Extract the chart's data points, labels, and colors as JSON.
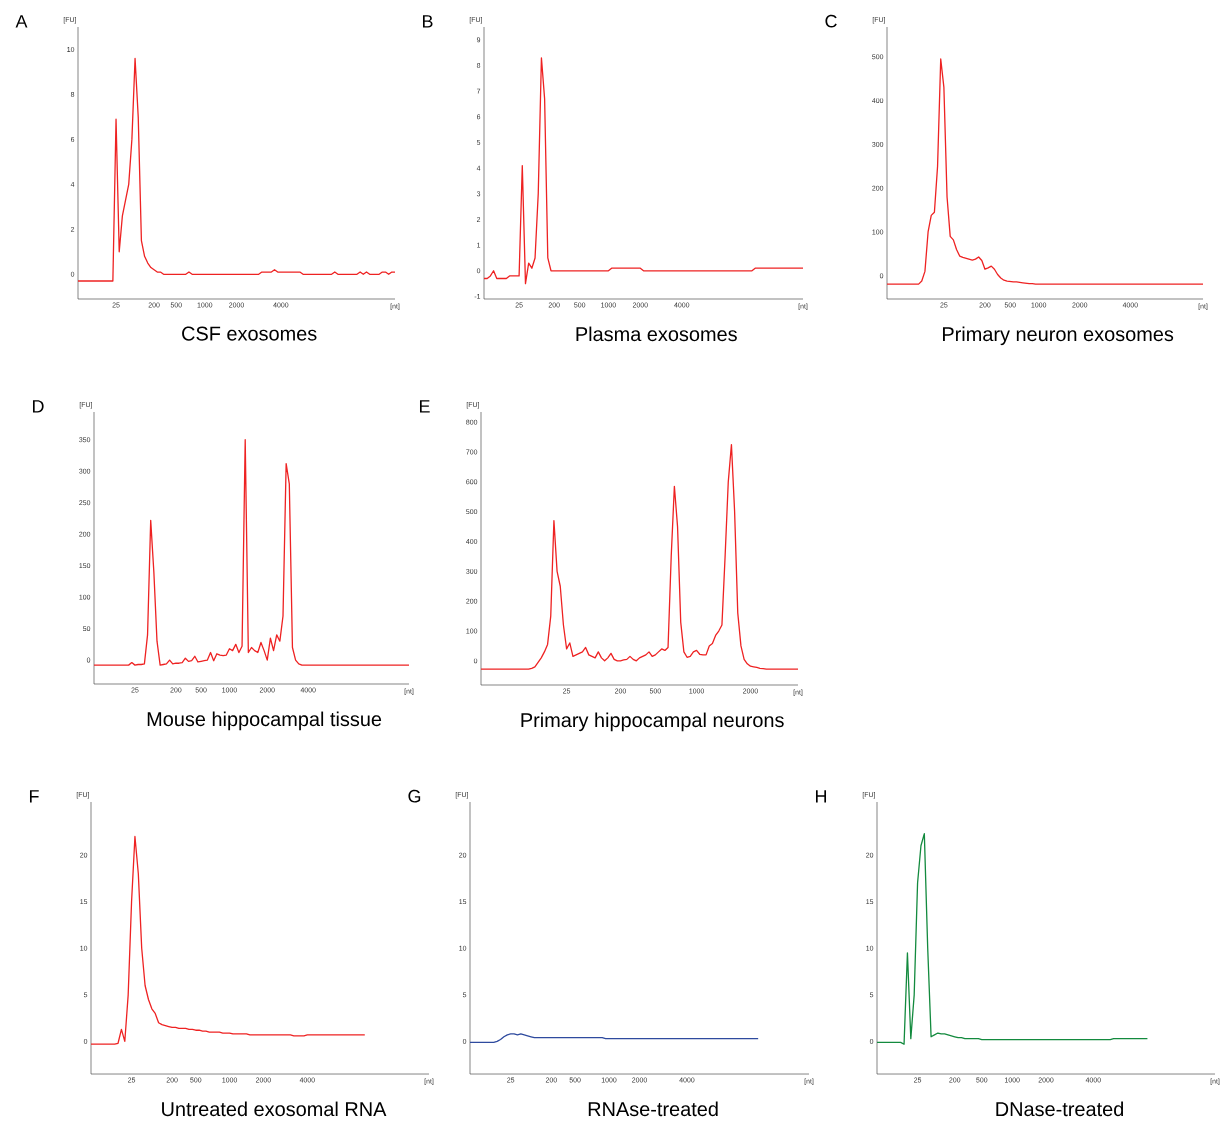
{
  "chart_data": [
    {
      "type": "line",
      "title": "CSF exosomes",
      "xlabel": "[nt]",
      "ylabel": "[FU]",
      "annotations": [
        "A"
      ],
      "ylim": [
        -1.1,
        11
      ],
      "yticks": [
        0,
        2,
        4,
        6,
        8,
        10
      ],
      "categories": [
        null,
        null,
        null,
        null,
        null,
        null,
        null,
        null,
        null,
        null,
        null,
        null,
        "25",
        null,
        null,
        null,
        null,
        null,
        null,
        null,
        null,
        null,
        null,
        null,
        "200",
        null,
        null,
        null,
        null,
        null,
        null,
        "500",
        null,
        null,
        null,
        null,
        null,
        null,
        null,
        null,
        "1000",
        null,
        null,
        null,
        null,
        null,
        null,
        null,
        null,
        null,
        "2000",
        null,
        null,
        null,
        null,
        null,
        null,
        null,
        null,
        null,
        null,
        null,
        null,
        null,
        "4000",
        null,
        null,
        null,
        null,
        null,
        null,
        null,
        null,
        null,
        null,
        null,
        null,
        null,
        null,
        null,
        null,
        null,
        null,
        null,
        null,
        null,
        null,
        null,
        null,
        null,
        null,
        null,
        null,
        null,
        null,
        null,
        null,
        null,
        null,
        null,
        null
      ],
      "series": [
        {
          "color": "#ee2222",
          "values": [
            -0.3,
            -0.3,
            -0.3,
            -0.3,
            -0.3,
            -0.3,
            -0.3,
            -0.3,
            -0.3,
            -0.3,
            -0.3,
            -0.3,
            6.9,
            1.0,
            2.6,
            3.3,
            4.0,
            6.0,
            9.6,
            7.0,
            1.5,
            0.8,
            0.5,
            0.3,
            0.2,
            0.1,
            0.1,
            0,
            0,
            0,
            0,
            0,
            0,
            0,
            0,
            0.1,
            0,
            0,
            0,
            0,
            0,
            0,
            0,
            0,
            0,
            0,
            0,
            0,
            0,
            0,
            0,
            0,
            0,
            0,
            0,
            0,
            0,
            0,
            0.1,
            0.1,
            0.1,
            0.1,
            0.2,
            0.1,
            0.1,
            0.1,
            0.1,
            0.1,
            0.1,
            0.1,
            0.1,
            0,
            0,
            0,
            0,
            0,
            0,
            0,
            0,
            0,
            0,
            0.1,
            0,
            0,
            0,
            0,
            0,
            0,
            0,
            0.1,
            0,
            0.1,
            0,
            0,
            0,
            0,
            0.1,
            0.1,
            0,
            0.1,
            0.1
          ]
        }
      ]
    },
    {
      "type": "line",
      "title": "Plasma exosomes",
      "xlabel": "[nt]",
      "ylabel": "[FU]",
      "annotations": [
        "B"
      ],
      "ylim": [
        -1.1,
        9.5
      ],
      "yticks": [
        -1,
        0,
        1,
        2,
        3,
        4,
        5,
        6,
        7,
        8,
        9
      ],
      "categories": [
        null,
        null,
        null,
        null,
        null,
        null,
        null,
        null,
        null,
        null,
        null,
        "25",
        null,
        null,
        null,
        null,
        null,
        null,
        null,
        null,
        null,
        null,
        "200",
        null,
        null,
        null,
        null,
        null,
        null,
        null,
        "500",
        null,
        null,
        null,
        null,
        null,
        null,
        null,
        null,
        "1000",
        null,
        null,
        null,
        null,
        null,
        null,
        null,
        null,
        null,
        "2000",
        null,
        null,
        null,
        null,
        null,
        null,
        null,
        null,
        null,
        null,
        null,
        null,
        "4000",
        null,
        null,
        null,
        null,
        null,
        null,
        null,
        null,
        null,
        null,
        null,
        null,
        null,
        null,
        null,
        null,
        null,
        null,
        null,
        null,
        null,
        null,
        null,
        null,
        null,
        null,
        null,
        null,
        null,
        null,
        null,
        null,
        null,
        null,
        null,
        null,
        null,
        null
      ],
      "series": [
        {
          "color": "#ee2222",
          "values": [
            -0.3,
            -0.3,
            -0.2,
            0,
            -0.3,
            -0.3,
            -0.3,
            -0.3,
            -0.2,
            -0.2,
            -0.2,
            -0.2,
            4.1,
            -0.5,
            0.3,
            0.1,
            0.5,
            3.0,
            8.3,
            6.7,
            0.5,
            0,
            0,
            0,
            0,
            0,
            0,
            0,
            0,
            0,
            0,
            0,
            0,
            0,
            0,
            0,
            0,
            0,
            0,
            0,
            0.1,
            0.1,
            0.1,
            0.1,
            0.1,
            0.1,
            0.1,
            0.1,
            0.1,
            0.1,
            0,
            0,
            0,
            0,
            0,
            0,
            0,
            0,
            0,
            0,
            0,
            0,
            0,
            0,
            0,
            0,
            0,
            0,
            0,
            0,
            0,
            0,
            0,
            0,
            0,
            0,
            0,
            0,
            0,
            0,
            0,
            0,
            0,
            0,
            0,
            0.1,
            0.1,
            0.1,
            0.1,
            0.1,
            0.1,
            0.1,
            0.1,
            0.1,
            0.1,
            0.1,
            0.1,
            0.1,
            0.1,
            0.1,
            0.1
          ]
        }
      ]
    },
    {
      "type": "line",
      "title": "Primary neuron exosomes",
      "xlabel": "[nt]",
      "ylabel": "[FU]",
      "annotations": [
        "C"
      ],
      "ylim": [
        -53,
        568
      ],
      "yticks": [
        0,
        100,
        200,
        300,
        400,
        500
      ],
      "categories": [
        null,
        null,
        null,
        null,
        null,
        null,
        null,
        null,
        null,
        null,
        null,
        null,
        null,
        null,
        null,
        null,
        null,
        null,
        "25",
        null,
        null,
        null,
        null,
        null,
        null,
        null,
        null,
        null,
        null,
        null,
        null,
        "200",
        null,
        null,
        null,
        null,
        null,
        null,
        null,
        "500",
        null,
        null,
        null,
        null,
        null,
        null,
        null,
        null,
        "1000",
        null,
        null,
        null,
        null,
        null,
        null,
        null,
        null,
        null,
        null,
        null,
        null,
        "2000",
        null,
        null,
        null,
        null,
        null,
        null,
        null,
        null,
        null,
        null,
        null,
        null,
        null,
        null,
        null,
        "4000",
        null,
        null,
        null,
        null,
        null,
        null,
        null,
        null,
        null,
        null,
        null,
        null,
        null,
        null,
        null,
        null,
        null,
        null,
        null,
        null,
        null,
        null,
        null
      ],
      "series": [
        {
          "color": "#ee2222",
          "values": [
            -19,
            -19,
            -19,
            -19,
            -19,
            -19,
            -19,
            -19,
            -19,
            -19,
            -19,
            -12,
            10,
            100,
            138,
            145,
            250,
            495,
            430,
            180,
            90,
            82,
            60,
            45,
            42,
            40,
            38,
            36,
            38,
            43,
            35,
            15,
            18,
            22,
            15,
            3,
            -5,
            -10,
            -12,
            -13,
            -14,
            -14,
            -15,
            -16,
            -17,
            -18,
            -18,
            -19,
            -19,
            -19,
            -19,
            -19,
            -19,
            -19,
            -19,
            -19,
            -19,
            -19,
            -19,
            -19,
            -19,
            -19,
            -19,
            -19,
            -19,
            -19,
            -19,
            -19,
            -19,
            -19,
            -19,
            -19,
            -19,
            -19,
            -19,
            -19,
            -19,
            -19,
            -19,
            -19,
            -19,
            -19,
            -19,
            -19,
            -19,
            -19,
            -19,
            -19,
            -19,
            -19,
            -19,
            -19,
            -19,
            -19,
            -19,
            -19,
            -19,
            -19,
            -19,
            -19,
            -19
          ]
        }
      ]
    },
    {
      "type": "line",
      "title": "Mouse hippocampal tissue",
      "xlabel": "[nt]",
      "ylabel": "[FU]",
      "annotations": [
        "D"
      ],
      "ylim": [
        -38,
        394
      ],
      "yticks": [
        0,
        50,
        100,
        150,
        200,
        250,
        300,
        350
      ],
      "categories": [
        null,
        null,
        null,
        null,
        null,
        null,
        null,
        null,
        null,
        null,
        null,
        null,
        null,
        "25",
        null,
        null,
        null,
        null,
        null,
        null,
        null,
        null,
        null,
        null,
        null,
        null,
        "200",
        null,
        null,
        null,
        null,
        null,
        null,
        null,
        "500",
        null,
        null,
        null,
        null,
        null,
        null,
        null,
        null,
        "1000",
        null,
        null,
        null,
        null,
        null,
        null,
        null,
        null,
        null,
        null,
        null,
        "2000",
        null,
        null,
        null,
        null,
        null,
        null,
        null,
        null,
        null,
        null,
        null,
        null,
        "4000",
        null,
        null,
        null,
        null,
        null,
        null,
        null,
        null,
        null,
        null,
        null,
        null,
        null,
        null,
        null,
        null,
        null,
        null,
        null,
        null,
        null,
        null,
        null,
        null,
        null,
        null,
        null,
        null,
        null,
        null,
        null,
        null
      ],
      "series": [
        {
          "color": "#ee2222",
          "values": [
            -8,
            -8,
            -8,
            -8,
            -8,
            -8,
            -8,
            -8,
            -8,
            -8,
            -8,
            -8,
            -4,
            -8,
            -7,
            -7,
            -6,
            40,
            222,
            140,
            30,
            -8,
            -7,
            -6,
            0,
            -6,
            -5,
            -5,
            -4,
            3,
            -2,
            -1,
            6,
            -3,
            -2,
            -1,
            0,
            12,
            -1,
            10,
            8,
            7,
            8,
            18,
            15,
            25,
            12,
            22,
            350,
            12,
            20,
            15,
            12,
            28,
            15,
            0,
            35,
            15,
            40,
            30,
            70,
            312,
            280,
            20,
            0,
            -6,
            -8,
            -8,
            -8,
            -8,
            -8,
            -8,
            -8,
            -8,
            -8,
            -8,
            -8,
            -8,
            -8,
            -8,
            -8,
            -8,
            -8,
            -8,
            -8,
            -8,
            -8,
            -8,
            -8,
            -8,
            -8,
            -8,
            -8,
            -8,
            -8,
            -8,
            -8,
            -8,
            -8,
            -8,
            -8
          ]
        }
      ]
    },
    {
      "type": "line",
      "title": "Primary hippocampal neurons",
      "xlabel": "[nt]",
      "ylabel": "[FU]",
      "annotations": [
        "E"
      ],
      "ylim": [
        -81,
        834
      ],
      "yticks": [
        0,
        100,
        200,
        300,
        400,
        500,
        600,
        700,
        800
      ],
      "categories": [
        null,
        null,
        null,
        null,
        null,
        null,
        null,
        null,
        null,
        null,
        null,
        null,
        null,
        null,
        null,
        null,
        null,
        null,
        null,
        null,
        null,
        null,
        null,
        null,
        null,
        null,
        null,
        "25",
        null,
        null,
        null,
        null,
        null,
        null,
        null,
        null,
        null,
        null,
        null,
        null,
        null,
        null,
        null,
        null,
        "200",
        null,
        null,
        null,
        null,
        null,
        null,
        null,
        null,
        null,
        null,
        "500",
        null,
        null,
        null,
        null,
        null,
        null,
        null,
        null,
        null,
        null,
        null,
        null,
        "1000",
        null,
        null,
        null,
        null,
        null,
        null,
        null,
        null,
        null,
        null,
        null,
        null,
        null,
        null,
        null,
        null,
        "2000",
        null,
        null,
        null,
        null,
        null,
        null,
        null,
        null,
        null,
        null,
        null,
        null,
        null,
        null,
        null
      ],
      "series": [
        {
          "color": "#ee2222",
          "values": [
            -28,
            -28,
            -28,
            -28,
            -28,
            -28,
            -28,
            -28,
            -28,
            -28,
            -28,
            -28,
            -28,
            -28,
            -28,
            -28,
            -25,
            -20,
            -5,
            10,
            30,
            55,
            150,
            470,
            300,
            250,
            120,
            40,
            60,
            15,
            20,
            25,
            30,
            45,
            20,
            15,
            10,
            30,
            10,
            0,
            10,
            25,
            5,
            0,
            0,
            3,
            5,
            15,
            5,
            0,
            10,
            15,
            20,
            30,
            15,
            20,
            30,
            40,
            35,
            45,
            350,
            585,
            450,
            130,
            30,
            12,
            15,
            30,
            35,
            22,
            20,
            20,
            50,
            58,
            85,
            100,
            120,
            350,
            600,
            725,
            500,
            160,
            50,
            5,
            -10,
            -18,
            -20,
            -22,
            -25,
            -26,
            -28,
            -28,
            -28,
            -28,
            -28,
            -28,
            -28,
            -28,
            -28,
            -28,
            -28
          ]
        }
      ]
    },
    {
      "type": "line",
      "title": "Untreated exosomal RNA",
      "xlabel": "[nt]",
      "ylabel": "[FU]",
      "annotations": [
        "F"
      ],
      "ylim": [
        -3.5,
        25.7
      ],
      "yticks": [
        0,
        5,
        10,
        15,
        20
      ],
      "categories": [
        null,
        null,
        null,
        null,
        null,
        null,
        null,
        null,
        null,
        null,
        null,
        null,
        "25",
        null,
        null,
        null,
        null,
        null,
        null,
        null,
        null,
        null,
        null,
        null,
        "200",
        null,
        null,
        null,
        null,
        null,
        null,
        "500",
        null,
        null,
        null,
        null,
        null,
        null,
        null,
        null,
        null,
        "1000",
        null,
        null,
        null,
        null,
        null,
        null,
        null,
        null,
        null,
        "2000",
        null,
        null,
        null,
        null,
        null,
        null,
        null,
        null,
        null,
        null,
        null,
        null,
        "4000",
        null,
        null,
        null,
        null,
        null,
        null,
        null,
        null,
        null,
        null,
        null,
        null,
        null,
        null,
        null,
        null,
        null,
        null,
        null,
        null,
        null,
        null,
        null,
        null,
        null,
        null,
        null,
        null,
        null,
        null,
        null,
        null,
        null,
        null,
        null,
        null
      ],
      "series": [
        {
          "color": "#ee2222",
          "values": [
            -0.3,
            -0.3,
            -0.3,
            -0.3,
            -0.3,
            -0.3,
            -0.3,
            -0.3,
            -0.2,
            1.3,
            0,
            5,
            15,
            22,
            18,
            10,
            6,
            4.5,
            3.5,
            3,
            2,
            1.8,
            1.7,
            1.6,
            1.5,
            1.5,
            1.4,
            1.4,
            1.4,
            1.3,
            1.3,
            1.2,
            1.2,
            1.1,
            1.1,
            1.0,
            1.0,
            1.0,
            1.0,
            0.9,
            0.9,
            0.9,
            0.8,
            0.8,
            0.8,
            0.8,
            0.8,
            0.7,
            0.7,
            0.7,
            0.7,
            0.7,
            0.7,
            0.7,
            0.7,
            0.7,
            0.7,
            0.7,
            0.7,
            0.7,
            0.6,
            0.6,
            0.6,
            0.6,
            0.7,
            0.7,
            0.7,
            0.7,
            0.7,
            0.7,
            0.7,
            0.7,
            0.7,
            0.7,
            0.7,
            0.7,
            0.7,
            0.7,
            0.7,
            0.7,
            0.7,
            0.7,
            null,
            null,
            null,
            null,
            null,
            null,
            null,
            null,
            null,
            null,
            null,
            null,
            null,
            null,
            null,
            null,
            null,
            null,
            null
          ]
        }
      ]
    },
    {
      "type": "line",
      "title": "RNAse-treated",
      "xlabel": "[nt]",
      "ylabel": "[FU]",
      "annotations": [
        "G"
      ],
      "ylim": [
        -3.5,
        25.7
      ],
      "yticks": [
        0,
        5,
        10,
        15,
        20
      ],
      "categories": [
        null,
        null,
        null,
        null,
        null,
        null,
        null,
        null,
        null,
        null,
        null,
        null,
        "25",
        null,
        null,
        null,
        null,
        null,
        null,
        null,
        null,
        null,
        null,
        null,
        "200",
        null,
        null,
        null,
        null,
        null,
        null,
        "500",
        null,
        null,
        null,
        null,
        null,
        null,
        null,
        null,
        null,
        "1000",
        null,
        null,
        null,
        null,
        null,
        null,
        null,
        null,
        "2000",
        null,
        null,
        null,
        null,
        null,
        null,
        null,
        null,
        null,
        null,
        null,
        null,
        null,
        "4000",
        null,
        null,
        null,
        null,
        null,
        null,
        null,
        null,
        null,
        null,
        null,
        null,
        null,
        null,
        null,
        null,
        null,
        null,
        null,
        null,
        null,
        null,
        null,
        null,
        null,
        null,
        null,
        null,
        null,
        null,
        null,
        null,
        null,
        null,
        null,
        null
      ],
      "series": [
        {
          "color": "#2e4a9e",
          "values": [
            -0.1,
            -0.1,
            -0.1,
            -0.1,
            -0.1,
            -0.1,
            -0.1,
            -0.1,
            0,
            0.2,
            0.5,
            0.7,
            0.8,
            0.8,
            0.7,
            0.8,
            0.7,
            0.6,
            0.5,
            0.4,
            0.4,
            0.4,
            0.4,
            0.4,
            0.4,
            0.4,
            0.4,
            0.4,
            0.4,
            0.4,
            0.4,
            0.4,
            0.4,
            0.4,
            0.4,
            0.4,
            0.4,
            0.4,
            0.4,
            0.4,
            0.3,
            0.3,
            0.3,
            0.3,
            0.3,
            0.3,
            0.3,
            0.3,
            0.3,
            0.3,
            0.3,
            0.3,
            0.3,
            0.3,
            0.3,
            0.3,
            0.3,
            0.3,
            0.3,
            0.3,
            0.3,
            0.3,
            0.3,
            0.3,
            0.3,
            0.3,
            0.3,
            0.3,
            0.3,
            0.3,
            0.3,
            0.3,
            0.3,
            0.3,
            0.3,
            0.3,
            0.3,
            0.3,
            0.3,
            0.3,
            0.3,
            0.3,
            0.3,
            0.3,
            0.3,
            0.3,
            null,
            null,
            null,
            null,
            null,
            null,
            null,
            null,
            null,
            null,
            null,
            null,
            null,
            null,
            null
          ]
        }
      ]
    },
    {
      "type": "line",
      "title": "DNase-treated",
      "xlabel": "[nt]",
      "ylabel": "[FU]",
      "annotations": [
        "H"
      ],
      "ylim": [
        -3.5,
        25.7
      ],
      "yticks": [
        0,
        5,
        10,
        15,
        20
      ],
      "categories": [
        null,
        null,
        null,
        null,
        null,
        null,
        null,
        null,
        null,
        null,
        null,
        null,
        "25",
        null,
        null,
        null,
        null,
        null,
        null,
        null,
        null,
        null,
        null,
        "200",
        null,
        null,
        null,
        null,
        null,
        null,
        null,
        "500",
        null,
        null,
        null,
        null,
        null,
        null,
        null,
        null,
        "1000",
        null,
        null,
        null,
        null,
        null,
        null,
        null,
        null,
        null,
        "2000",
        null,
        null,
        null,
        null,
        null,
        null,
        null,
        null,
        null,
        null,
        null,
        null,
        null,
        "4000",
        null,
        null,
        null,
        null,
        null,
        null,
        null,
        null,
        null,
        null,
        null,
        null,
        null,
        null,
        null,
        null,
        null,
        null,
        null,
        null,
        null,
        null,
        null,
        null,
        null,
        null,
        null,
        null,
        null,
        null,
        null,
        null,
        null,
        null,
        null,
        null
      ],
      "series": [
        {
          "color": "#138a3e",
          "values": [
            -0.1,
            -0.1,
            -0.1,
            -0.1,
            -0.1,
            -0.1,
            -0.1,
            -0.1,
            -0.3,
            9.5,
            0.3,
            5,
            17,
            21,
            22.3,
            10,
            0.5,
            0.7,
            0.9,
            0.8,
            0.8,
            0.7,
            0.6,
            0.5,
            0.4,
            0.4,
            0.3,
            0.3,
            0.3,
            0.3,
            0.3,
            0.2,
            0.2,
            0.2,
            0.2,
            0.2,
            0.2,
            0.2,
            0.2,
            0.2,
            0.2,
            0.2,
            0.2,
            0.2,
            0.2,
            0.2,
            0.2,
            0.2,
            0.2,
            0.2,
            0.2,
            0.2,
            0.2,
            0.2,
            0.2,
            0.2,
            0.2,
            0.2,
            0.2,
            0.2,
            0.2,
            0.2,
            0.2,
            0.2,
            0.2,
            0.2,
            0.2,
            0.2,
            0.2,
            0.2,
            0.3,
            0.3,
            0.3,
            0.3,
            0.3,
            0.3,
            0.3,
            0.3,
            0.3,
            0.3,
            0.3,
            null,
            null,
            null,
            null,
            null,
            null,
            null,
            null,
            null,
            null,
            null,
            null,
            null,
            null,
            null,
            null,
            null,
            null,
            null,
            null
          ]
        }
      ]
    }
  ]
}
